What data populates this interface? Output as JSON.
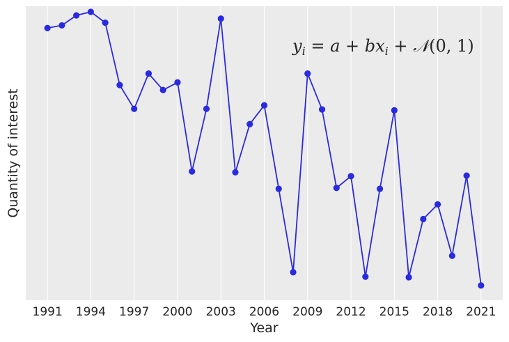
{
  "chart_data": {
    "type": "line",
    "title": "",
    "xlabel": "Year",
    "ylabel": "Quantity of interest",
    "annotation": "y_i = a + bx_i + 𝒩(0,1)",
    "xlim": [
      1989.5,
      2022.5
    ],
    "ylim": [
      0.0,
      1.0
    ],
    "y_tick_labels": "none",
    "grid": "vertical",
    "legend": "none",
    "x_ticks": [
      1991,
      1994,
      1997,
      2000,
      2003,
      2006,
      2009,
      2012,
      2015,
      2018,
      2021
    ],
    "series": [
      {
        "color": "#2a2ae0",
        "x": [
          1991,
          1992,
          1993,
          1994,
          1995,
          1996,
          1997,
          1998,
          1999,
          2000,
          2001,
          2002,
          2003,
          2004,
          2005,
          2006,
          2007,
          2008,
          2009,
          2010,
          2011,
          2012,
          2013,
          2014,
          2015,
          2016,
          2017,
          2018,
          2019,
          2020,
          2021
        ],
        "y": [
          0.926,
          0.935,
          0.969,
          0.981,
          0.944,
          0.732,
          0.651,
          0.771,
          0.715,
          0.741,
          0.438,
          0.651,
          0.958,
          0.435,
          0.599,
          0.663,
          0.379,
          0.095,
          0.771,
          0.649,
          0.382,
          0.422,
          0.08,
          0.379,
          0.646,
          0.078,
          0.276,
          0.326,
          0.151,
          0.424,
          0.05
        ]
      }
    ]
  },
  "colors": {
    "plot_background": "#ebebeb",
    "gridline": "#ffffff",
    "line": "#2a2ae0"
  }
}
